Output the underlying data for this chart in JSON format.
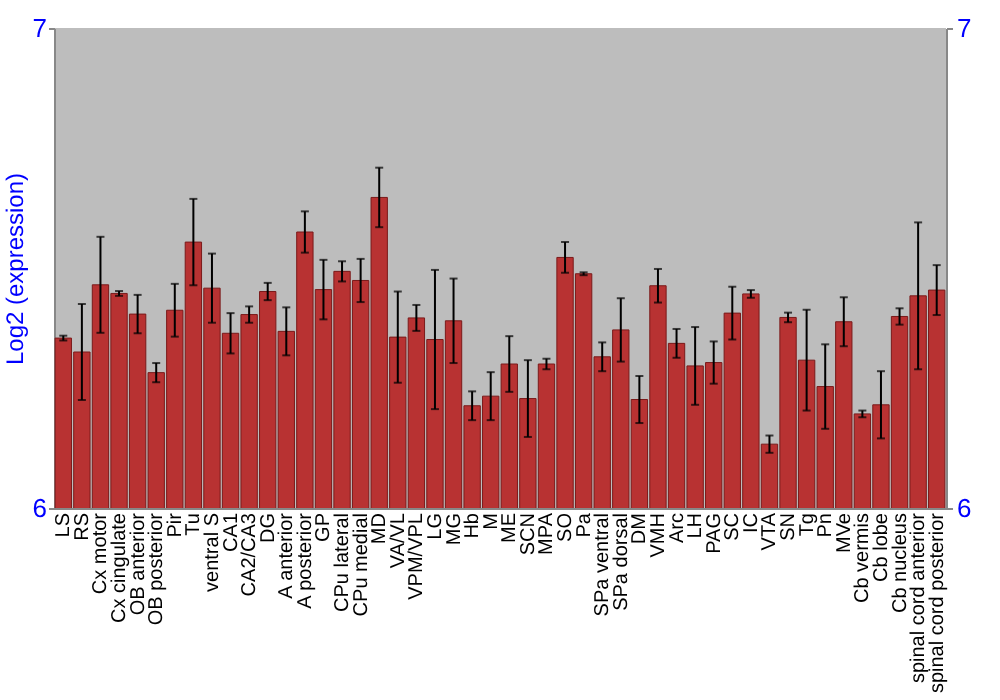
{
  "chart_data": {
    "type": "bar",
    "ylabel": "Log2 (expression)",
    "categories": [
      "LS",
      "RS",
      "Cx motor",
      "Cx cingulate",
      "OB anterior",
      "OB posterior",
      "Pir",
      "Tu",
      "ventral S",
      "CA1",
      "CA2/CA3",
      "DG",
      "A anterior",
      "A posterior",
      "GP",
      "CPu lateral",
      "CPu medial",
      "MD",
      "VA/VL",
      "VPM/VPL",
      "LG",
      "MG",
      "Hb",
      "M",
      "ME",
      "SCN",
      "MPA",
      "SO",
      "Pa",
      "SPa ventral",
      "SPa dorsal",
      "DM",
      "VMH",
      "Arc",
      "LH",
      "PAG",
      "SC",
      "IC",
      "VTA",
      "SN",
      "Tg",
      "Pn",
      "MVe",
      "Cb vermis",
      "Cb lobe",
      "Cb nucleus",
      "spinal cord anterior",
      "spinal cord posterior"
    ],
    "values": [
      6.354,
      6.325,
      6.465,
      6.447,
      6.404,
      6.282,
      6.412,
      6.554,
      6.458,
      6.364,
      6.403,
      6.451,
      6.368,
      6.575,
      6.455,
      6.493,
      6.474,
      6.647,
      6.356,
      6.396,
      6.351,
      6.39,
      6.213,
      6.233,
      6.3,
      6.228,
      6.3,
      6.522,
      6.488,
      6.315,
      6.371,
      6.226,
      6.463,
      6.343,
      6.296,
      6.303,
      6.406,
      6.446,
      6.133,
      6.397,
      6.308,
      6.253,
      6.388,
      6.196,
      6.215,
      6.399,
      6.442,
      6.454
    ],
    "errors": [
      0.005,
      0.1,
      0.1,
      0.005,
      0.04,
      0.02,
      0.055,
      0.09,
      0.072,
      0.042,
      0.017,
      0.018,
      0.05,
      0.043,
      0.062,
      0.021,
      0.045,
      0.062,
      0.095,
      0.027,
      0.145,
      0.088,
      0.03,
      0.05,
      0.058,
      0.08,
      0.011,
      0.032,
      0.003,
      0.03,
      0.066,
      0.049,
      0.035,
      0.03,
      0.081,
      0.044,
      0.055,
      0.008,
      0.018,
      0.01,
      0.105,
      0.088,
      0.051,
      0.007,
      0.07,
      0.017,
      0.153,
      0.052
    ],
    "color": "#b83232",
    "ylim": [
      6,
      7
    ],
    "yticks": [
      6,
      7
    ],
    "y2lim": [
      6,
      7
    ],
    "y2ticks": [
      6,
      7
    ],
    "grid": false
  }
}
